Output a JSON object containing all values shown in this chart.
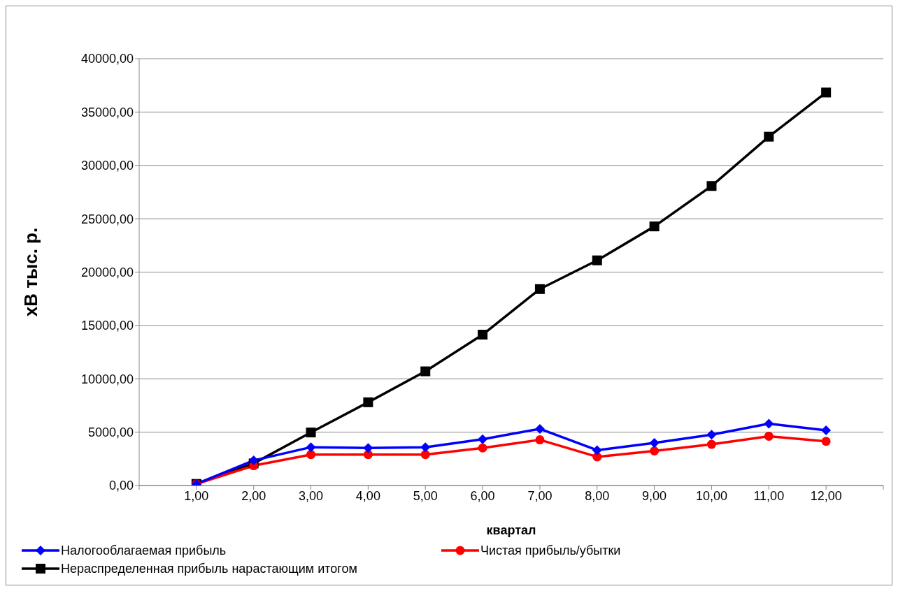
{
  "chart_data": {
    "type": "line",
    "xlabel": "квартал",
    "ylabel": "хВ тыс. р.",
    "categories": [
      null,
      "1,00",
      "2,00",
      "3,00",
      "4,00",
      "5,00",
      "6,00",
      "7,00",
      "8,00",
      "9,00",
      "10,00",
      "11,00",
      "12,00",
      null
    ],
    "series": [
      {
        "name": "Налогооблагаемая прибыль",
        "color": "#0000ff",
        "marker": "diamond",
        "values": [
          null,
          150,
          2350,
          3590,
          3520,
          3590,
          4340,
          5310,
          3310,
          4000,
          4760,
          5790,
          5170,
          null
        ]
      },
      {
        "name": "Чистая прибыль/убытки",
        "color": "#ff0000",
        "marker": "circle",
        "values": [
          null,
          150,
          1860,
          2900,
          2900,
          2900,
          3520,
          4280,
          2690,
          3240,
          3860,
          4620,
          4140,
          null
        ]
      },
      {
        "name": "Нераспределенная прибыль нарастающим итогом",
        "color": "#000000",
        "marker": "square",
        "values": [
          null,
          150,
          2070,
          4970,
          7800,
          10700,
          14140,
          18410,
          21100,
          24280,
          28070,
          32690,
          36830,
          null
        ]
      }
    ],
    "ylim": [
      0,
      40000
    ],
    "yticks": [
      {
        "value": 0,
        "label": "0,00"
      },
      {
        "value": 5000,
        "label": "5000,00"
      },
      {
        "value": 10000,
        "label": "10000,00"
      },
      {
        "value": 15000,
        "label": "15000,00"
      },
      {
        "value": 20000,
        "label": "20000,00"
      },
      {
        "value": 25000,
        "label": "25000,00"
      },
      {
        "value": 30000,
        "label": "30000,00"
      },
      {
        "value": 35000,
        "label": "35000,00"
      },
      {
        "value": 40000,
        "label": "40000,00"
      }
    ],
    "grid": "y",
    "legend": "bottom",
    "line_style": "solid"
  }
}
